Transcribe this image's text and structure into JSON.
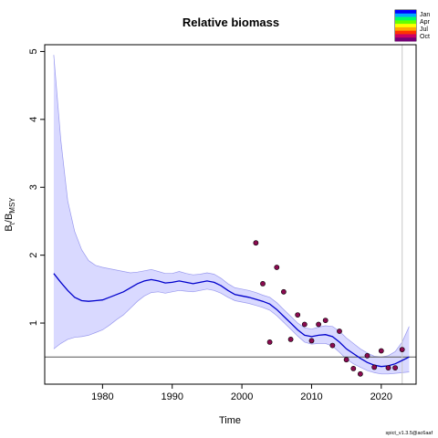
{
  "chart_data": {
    "type": "line",
    "title": "Relative biomass",
    "xlabel": "Time",
    "ylabel": {
      "main": "B",
      "sub1": "t",
      "sep": "/B",
      "sub2": "MSY"
    },
    "xlim": [
      1971.7,
      2025.0
    ],
    "ylim": [
      0.1,
      5.1
    ],
    "x_ticks": [
      1980,
      1990,
      2000,
      2010,
      2020
    ],
    "y_ticks": [
      1,
      2,
      3,
      4,
      5
    ],
    "reference_line": {
      "y": 0.5,
      "color": "#555555"
    },
    "vertical_line": {
      "x": 2023,
      "color": "#c8c8c8"
    },
    "series": [
      {
        "kind": "median",
        "color": "#0000cc",
        "x": [
          1973,
          1974,
          1975,
          1976,
          1977,
          1978,
          1979,
          1980,
          1981,
          1982,
          1983,
          1984,
          1985,
          1986,
          1987,
          1988,
          1989,
          1990,
          1991,
          1992,
          1993,
          1994,
          1995,
          1996,
          1997,
          1998,
          1999,
          2000,
          2001,
          2002,
          2003,
          2004,
          2005,
          2006,
          2007,
          2008,
          2009,
          2010,
          2011,
          2012,
          2013,
          2014,
          2015,
          2016,
          2017,
          2018,
          2019,
          2020,
          2021,
          2022,
          2023,
          2024
        ],
        "y": [
          1.73,
          1.6,
          1.48,
          1.38,
          1.33,
          1.32,
          1.33,
          1.34,
          1.38,
          1.42,
          1.46,
          1.52,
          1.58,
          1.62,
          1.64,
          1.62,
          1.59,
          1.6,
          1.62,
          1.6,
          1.58,
          1.6,
          1.62,
          1.6,
          1.55,
          1.48,
          1.42,
          1.4,
          1.38,
          1.35,
          1.32,
          1.28,
          1.2,
          1.1,
          1.0,
          0.9,
          0.82,
          0.8,
          0.82,
          0.83,
          0.8,
          0.72,
          0.62,
          0.55,
          0.48,
          0.42,
          0.38,
          0.36,
          0.37,
          0.4,
          0.45,
          0.5
        ]
      }
    ],
    "confidence_band": {
      "color": "#ccccff",
      "border": "#9999ee",
      "x": [
        1973,
        1974,
        1975,
        1976,
        1977,
        1978,
        1979,
        1980,
        1981,
        1982,
        1983,
        1984,
        1985,
        1986,
        1987,
        1988,
        1989,
        1990,
        1991,
        1992,
        1993,
        1994,
        1995,
        1996,
        1997,
        1998,
        1999,
        2000,
        2001,
        2002,
        2003,
        2004,
        2005,
        2006,
        2007,
        2008,
        2009,
        2010,
        2011,
        2012,
        2013,
        2014,
        2015,
        2016,
        2017,
        2018,
        2019,
        2020,
        2021,
        2022,
        2023,
        2024
      ],
      "lower": [
        0.62,
        0.7,
        0.76,
        0.79,
        0.8,
        0.82,
        0.86,
        0.9,
        0.97,
        1.05,
        1.12,
        1.22,
        1.32,
        1.4,
        1.45,
        1.46,
        1.44,
        1.46,
        1.48,
        1.47,
        1.46,
        1.48,
        1.5,
        1.48,
        1.44,
        1.38,
        1.33,
        1.31,
        1.29,
        1.26,
        1.23,
        1.19,
        1.11,
        1.01,
        0.91,
        0.81,
        0.72,
        0.69,
        0.7,
        0.7,
        0.66,
        0.57,
        0.47,
        0.4,
        0.35,
        0.3,
        0.27,
        0.25,
        0.25,
        0.26,
        0.27,
        0.28
      ],
      "upper": [
        4.95,
        3.7,
        2.8,
        2.35,
        2.08,
        1.92,
        1.85,
        1.82,
        1.8,
        1.78,
        1.76,
        1.74,
        1.75,
        1.77,
        1.79,
        1.76,
        1.73,
        1.73,
        1.76,
        1.73,
        1.71,
        1.72,
        1.74,
        1.72,
        1.66,
        1.58,
        1.52,
        1.5,
        1.48,
        1.45,
        1.41,
        1.38,
        1.3,
        1.2,
        1.1,
        1.0,
        0.93,
        0.91,
        0.94,
        0.96,
        0.95,
        0.88,
        0.78,
        0.7,
        0.62,
        0.56,
        0.51,
        0.5,
        0.52,
        0.58,
        0.72,
        0.95
      ]
    },
    "points": [
      {
        "x": 2002.0,
        "y": 2.18
      },
      {
        "x": 2003.0,
        "y": 1.58
      },
      {
        "x": 2004.0,
        "y": 0.72
      },
      {
        "x": 2005.0,
        "y": 1.82
      },
      {
        "x": 2006.0,
        "y": 1.46
      },
      {
        "x": 2007.0,
        "y": 0.76
      },
      {
        "x": 2008.0,
        "y": 1.12
      },
      {
        "x": 2009.0,
        "y": 0.98
      },
      {
        "x": 2010.0,
        "y": 0.74
      },
      {
        "x": 2011.0,
        "y": 0.98
      },
      {
        "x": 2012.0,
        "y": 1.04
      },
      {
        "x": 2013.0,
        "y": 0.67
      },
      {
        "x": 2014.0,
        "y": 0.88
      },
      {
        "x": 2015.0,
        "y": 0.46
      },
      {
        "x": 2016.0,
        "y": 0.33
      },
      {
        "x": 2017.0,
        "y": 0.25
      },
      {
        "x": 2018.0,
        "y": 0.52
      },
      {
        "x": 2019.0,
        "y": 0.35
      },
      {
        "x": 2020.0,
        "y": 0.59
      },
      {
        "x": 2021.0,
        "y": 0.34
      },
      {
        "x": 2022.0,
        "y": 0.34
      },
      {
        "x": 2023.0,
        "y": 0.61
      }
    ],
    "point_fill": "#8b0a50",
    "legend": {
      "placement": "top-right",
      "entries": [
        "Jan",
        "Apr",
        "Jul",
        "Oct"
      ],
      "gradient_colors": [
        "#0000ff",
        "#00aaff",
        "#00ff66",
        "#66ff00",
        "#ffff00",
        "#ffaa00",
        "#ff3300",
        "#cc0066",
        "#770077"
      ]
    },
    "footer_text": "spict_v1.3.5@ac6aaf"
  }
}
